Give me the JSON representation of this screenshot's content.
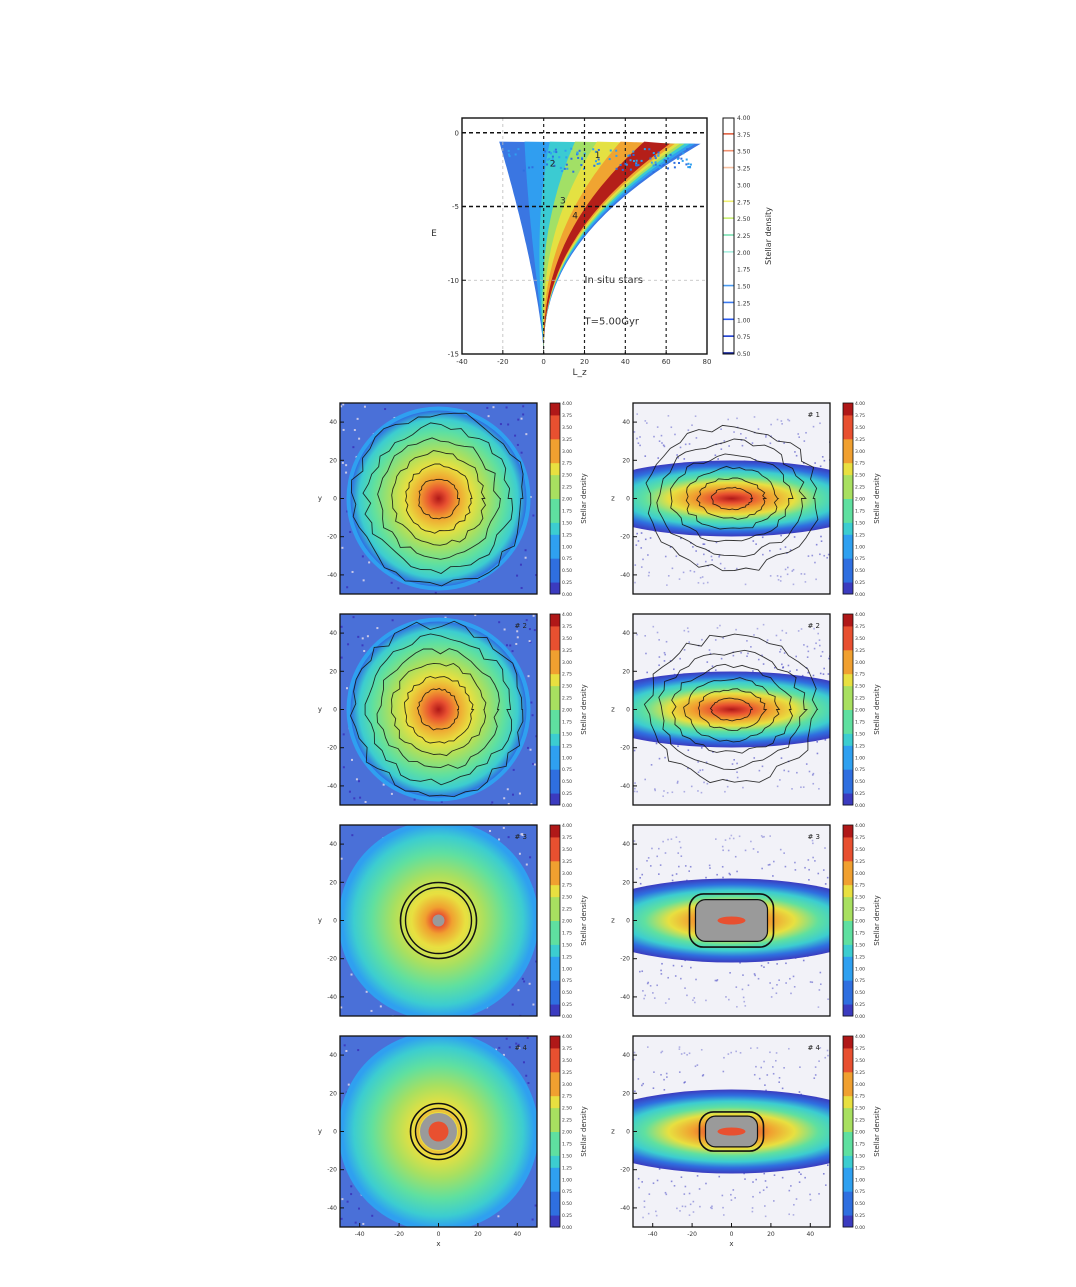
{
  "colors": {
    "colormap": [
      "#3b3bbf",
      "#2f6fe0",
      "#2fa0f0",
      "#3ccdd0",
      "#5fe0a0",
      "#a8e060",
      "#e8e040",
      "#f0a030",
      "#e85030",
      "#b01818"
    ],
    "contour": "#111111",
    "gray_core": "#9a9a9a"
  },
  "chart_data": [
    {
      "type": "heatmap",
      "id": "energy-angular-momentum",
      "title": "",
      "xlabel": "L_z",
      "ylabel": "E",
      "xlim": [
        -40,
        80
      ],
      "ylim": [
        -15,
        1
      ],
      "x_ticks": [
        "-40",
        "-20",
        "0",
        "20",
        "40",
        "60",
        "80"
      ],
      "y_ticks": [
        "0",
        "-5",
        "-10",
        "-15"
      ],
      "hlines_dashed": [
        0,
        -5
      ],
      "vlines_dashed": [
        0,
        20,
        40,
        60
      ],
      "grid": true,
      "annotations": [
        "In situ stars",
        "T=5.00Gyr"
      ],
      "region_labels": [
        "1",
        "2",
        "3",
        "4"
      ],
      "colorbar": {
        "label": "Stellar density",
        "ticks": [
          "4.00",
          "3.75",
          "3.50",
          "3.25",
          "3.00",
          "2.75",
          "2.50",
          "2.25",
          "2.00",
          "1.75",
          "1.50",
          "1.25",
          "1.00",
          "0.75",
          "0.50"
        ],
        "range": [
          0.5,
          4.0
        ]
      }
    },
    {
      "type": "heatmap",
      "id": "density-maps-grid",
      "rows": 4,
      "columns": 2,
      "column_ylabels": [
        "y",
        "z"
      ],
      "xlabel": "x",
      "xlim": [
        -50,
        50
      ],
      "ylim": [
        -50,
        50
      ],
      "x_ticks": [
        "-40",
        "-20",
        "0",
        "20",
        "40"
      ],
      "y_ticks": [
        "40",
        "20",
        "0",
        "-20",
        "-40"
      ],
      "panel_labels": [
        [
          "",
          "# 1"
        ],
        [
          "# 2",
          "# 2"
        ],
        [
          "# 3",
          "# 3"
        ],
        [
          "# 4",
          "# 4"
        ]
      ],
      "colorbar": {
        "label": "Stellar density",
        "ticks": [
          "4.00",
          "3.75",
          "3.50",
          "3.25",
          "3.00",
          "2.75",
          "2.50",
          "2.25",
          "2.00",
          "1.75",
          "1.50",
          "1.25",
          "1.00",
          "0.75",
          "0.50",
          "0.25",
          "0.00"
        ],
        "range": [
          0.0,
          4.0
        ]
      }
    }
  ]
}
